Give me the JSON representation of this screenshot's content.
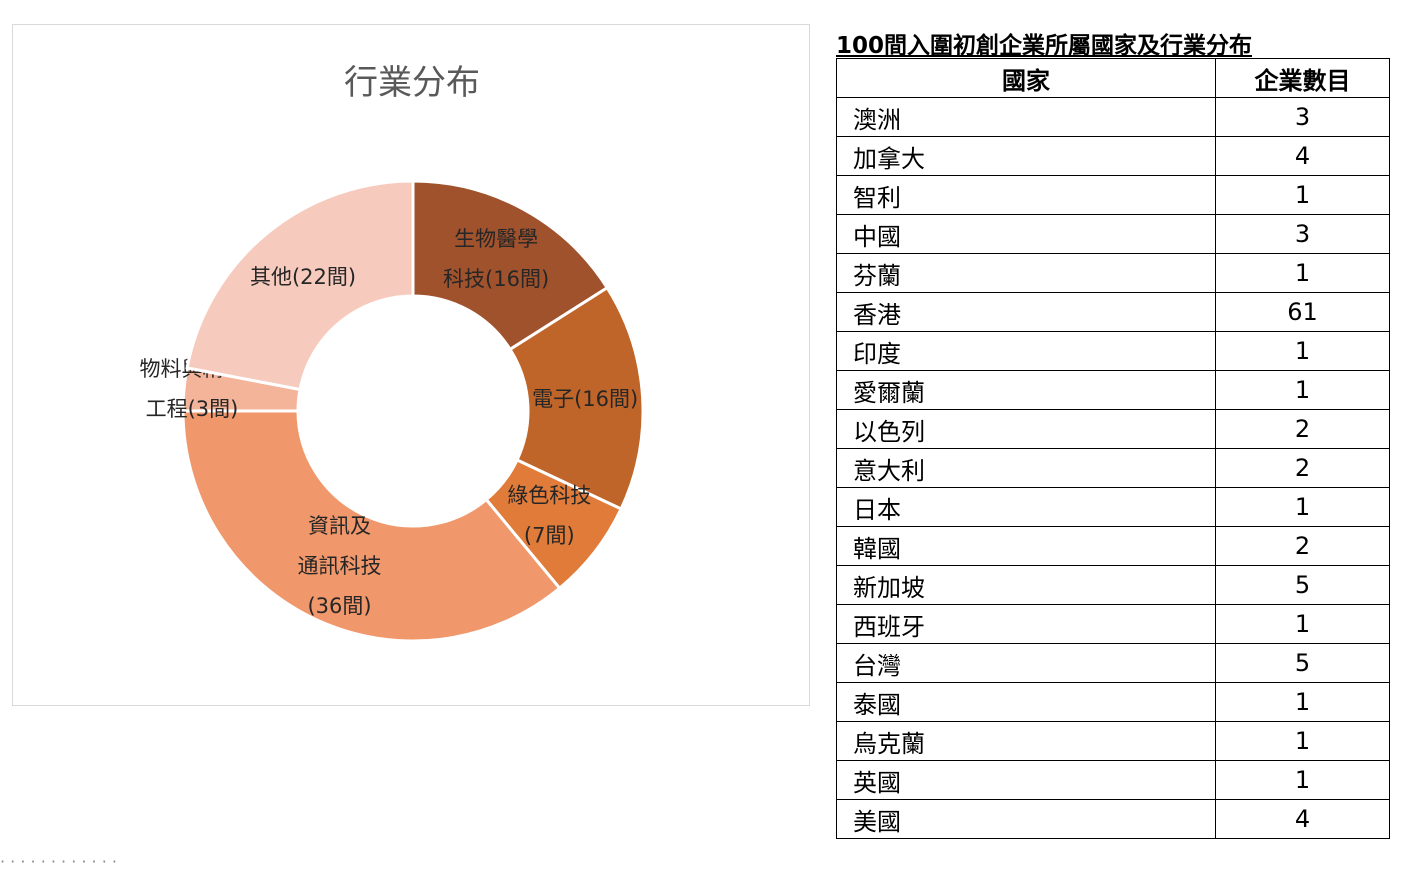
{
  "chart_data": {
    "type": "pie",
    "title": "行業分布",
    "donut": true,
    "slices": [
      {
        "name": "生物醫學科技",
        "value": 16,
        "label_lines": [
          "生物醫學",
          "科技(16間)"
        ],
        "color": "#a0522d"
      },
      {
        "name": "電子",
        "value": 16,
        "label_lines": [
          "電子(16間)"
        ],
        "color": "#c0652a"
      },
      {
        "name": "綠色科技",
        "value": 7,
        "label_lines": [
          "綠色科技",
          "(7間)"
        ],
        "color": "#e07b39"
      },
      {
        "name": "資訊及通訊科技",
        "value": 36,
        "label_lines": [
          "資訊及",
          "通訊科技",
          "(36間)"
        ],
        "color": "#f0976b"
      },
      {
        "name": "物料與精密工程",
        "value": 3,
        "label_lines": [
          "物料與精密",
          "工程(3間)"
        ],
        "color": "#f4b49a"
      },
      {
        "name": "其他",
        "value": 22,
        "label_lines": [
          "其他(22間)"
        ],
        "color": "#f6cbbd"
      }
    ]
  },
  "table": {
    "title": "100間入圍初創企業所屬國家及行業分布",
    "headers": {
      "country": "國家",
      "count": "企業數目"
    },
    "rows": [
      {
        "country": "澳洲",
        "count": "3"
      },
      {
        "country": "加拿大",
        "count": "4"
      },
      {
        "country": "智利",
        "count": "1"
      },
      {
        "country": "中國",
        "count": "3"
      },
      {
        "country": "芬蘭",
        "count": "1"
      },
      {
        "country": "香港",
        "count": "61"
      },
      {
        "country": "印度",
        "count": "1"
      },
      {
        "country": "愛爾蘭",
        "count": "1"
      },
      {
        "country": "以色列",
        "count": "2"
      },
      {
        "country": "意大利",
        "count": "2"
      },
      {
        "country": "日本",
        "count": "1"
      },
      {
        "country": "韓國",
        "count": "2"
      },
      {
        "country": "新加坡",
        "count": "5"
      },
      {
        "country": "西班牙",
        "count": "1"
      },
      {
        "country": "台灣",
        "count": "5"
      },
      {
        "country": "泰國",
        "count": "1"
      },
      {
        "country": "烏克蘭",
        "count": "1"
      },
      {
        "country": "英國",
        "count": "1"
      },
      {
        "country": "美國",
        "count": "4"
      }
    ]
  }
}
